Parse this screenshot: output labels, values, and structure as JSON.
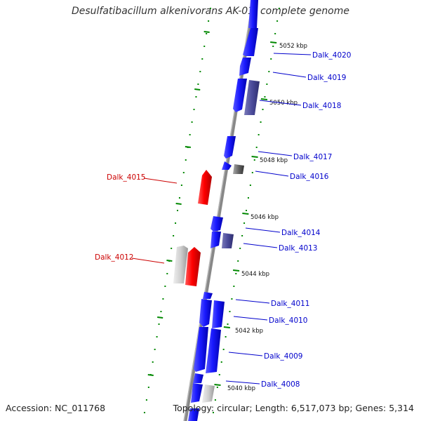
{
  "title": "Desulfatibacillum alkenivorans AK-01, complete genome",
  "footer": {
    "accession": "Accession: NC_011768",
    "topology": "Topology: circular; Length: 6,517,073 bp; Genes: 5,314"
  },
  "colors": {
    "forward_gene": "#1a1aff",
    "reverse_gene": "#ff0000",
    "gray_gene": "#cccccc",
    "purple_gene": "#4b4b9b",
    "backbone": "#888888",
    "tick": "#008800",
    "forward_label": "#0000cc",
    "reverse_label": "#cc0000"
  },
  "scale_labels": [
    "5052 kbp",
    "5050 kbp",
    "5048 kbp",
    "5046 kbp",
    "5044 kbp",
    "5042 kbp",
    "5040 kbp"
  ],
  "gene_labels": {
    "forward": [
      "Dalk_4020",
      "Dalk_4019",
      "Dalk_4018",
      "Dalk_4017",
      "Dalk_4016",
      "Dalk_4014",
      "Dalk_4013",
      "Dalk_4011",
      "Dalk_4010",
      "Dalk_4009",
      "Dalk_4008"
    ],
    "reverse": [
      "Dalk_4015",
      "Dalk_4012"
    ]
  }
}
